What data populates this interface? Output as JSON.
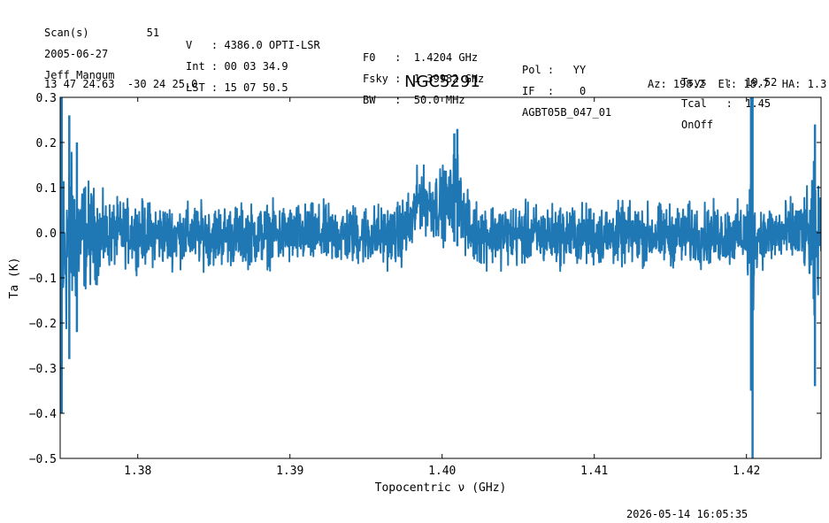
{
  "header": {
    "row1": [
      {
        "id": "scan",
        "text": "Scan(s)         51"
      },
      {
        "id": "velocity",
        "text": "V   : 4386.0 OPTI-LSR"
      },
      {
        "id": "f0",
        "text": "F0   :  1.4204 GHz"
      },
      {
        "id": "pol",
        "text": "Pol :   YY"
      },
      {
        "id": "tsys",
        "text": "Tsys   :  19.52"
      }
    ],
    "row2": [
      {
        "id": "date",
        "text": "2005-06-27"
      },
      {
        "id": "int",
        "text": "Int : 00 03 34.9"
      },
      {
        "id": "fsky",
        "text": "Fsky :  1.39982 GHz"
      },
      {
        "id": "if",
        "text": "IF  :    0"
      },
      {
        "id": "tcal",
        "text": "Tcal   :  1.45"
      }
    ],
    "row3": [
      {
        "id": "observer",
        "text": "Jeff Mangum"
      },
      {
        "id": "lst",
        "text": "LST : 15 07 50.5"
      },
      {
        "id": "bw",
        "text": "BW   :  50.0 MHz"
      },
      {
        "id": "project",
        "text": "AGBT05B_047_01"
      },
      {
        "id": "proc",
        "text": "OnOff"
      }
    ],
    "coords": "13 47 24.63  -30 24 25.0",
    "title": "NGC5291",
    "azel": "Az: 198.2  El: 18.7  HA: 1.3"
  },
  "footer": {
    "timestamp": "2026-05-14 16:05:35"
  },
  "chart_data": {
    "type": "line",
    "title": "NGC5291",
    "xlabel": "Topocentric ν (GHz)",
    "ylabel": "Ta (K)",
    "xlim": [
      1.3749,
      1.4249
    ],
    "ylim": [
      -0.5,
      0.3
    ],
    "xticks": [
      1.38,
      1.39,
      1.4,
      1.41,
      1.42
    ],
    "xtick_labels": [
      "1.38",
      "1.39",
      "1.40",
      "1.41",
      "1.42"
    ],
    "yticks": [
      -0.5,
      -0.4,
      -0.3,
      -0.2,
      -0.1,
      0.0,
      0.1,
      0.2,
      0.3
    ],
    "ytick_labels": [
      "−0.5",
      "−0.4",
      "−0.3",
      "−0.2",
      "−0.1",
      "0.0",
      "0.1",
      "0.2",
      "0.3"
    ],
    "color": "#1f77b4",
    "series": [
      {
        "x": [
          1.375,
          1.3755,
          1.376,
          1.3765,
          1.377,
          1.3775,
          1.378,
          1.379,
          1.38,
          1.382,
          1.385,
          1.388,
          1.39,
          1.392,
          1.395,
          1.397,
          1.398,
          1.3985,
          1.399,
          1.3995,
          1.4,
          1.4005,
          1.4008,
          1.401,
          1.4012,
          1.4015,
          1.402,
          1.405,
          1.41,
          1.415,
          1.419,
          1.42,
          1.4203,
          1.4204,
          1.4205,
          1.4207,
          1.421,
          1.423,
          1.424,
          1.4245,
          1.4248
        ],
        "y_upper": [
          0.3,
          0.26,
          0.2,
          0.17,
          0.15,
          0.12,
          0.1,
          0.1,
          0.1,
          0.09,
          0.09,
          0.09,
          0.09,
          0.09,
          0.09,
          0.09,
          0.13,
          0.18,
          0.16,
          0.17,
          0.18,
          0.17,
          0.22,
          0.23,
          0.18,
          0.12,
          0.1,
          0.09,
          0.09,
          0.09,
          0.09,
          0.09,
          0.3,
          0.3,
          0.09,
          0.09,
          0.09,
          0.1,
          0.12,
          0.24,
          0.11
        ],
        "y_lower": [
          -0.4,
          -0.28,
          -0.22,
          -0.18,
          -0.16,
          -0.14,
          -0.11,
          -0.1,
          -0.1,
          -0.1,
          -0.1,
          -0.1,
          -0.1,
          -0.1,
          -0.1,
          -0.1,
          -0.09,
          -0.02,
          -0.03,
          -0.05,
          -0.05,
          -0.05,
          -0.02,
          -0.03,
          -0.03,
          -0.08,
          -0.1,
          -0.1,
          -0.1,
          -0.1,
          -0.1,
          -0.1,
          -0.35,
          -0.5,
          -0.12,
          -0.1,
          -0.1,
          -0.1,
          -0.12,
          -0.34,
          -0.11
        ]
      }
    ]
  }
}
